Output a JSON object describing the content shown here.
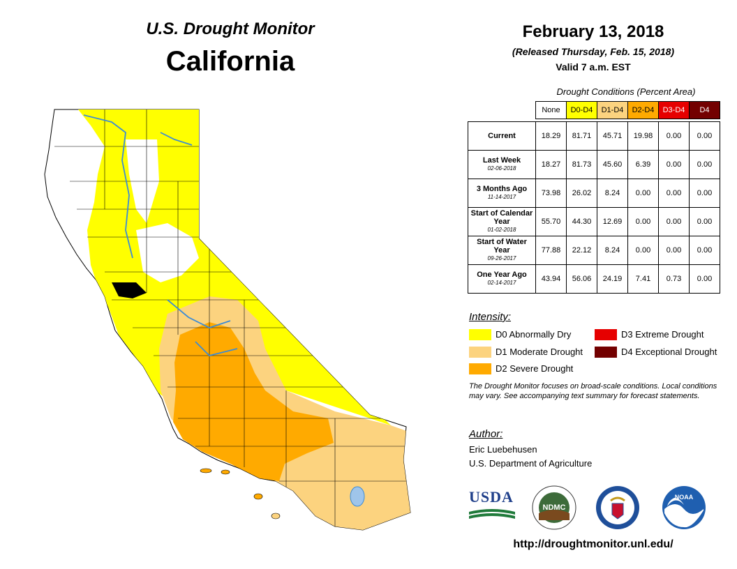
{
  "header": {
    "monitor_title": "U.S. Drought Monitor",
    "state": "California",
    "date": "February 13, 2018",
    "released": "(Released Thursday, Feb. 15, 2018)",
    "valid": "Valid 7 a.m. EST"
  },
  "table": {
    "caption": "Drought Conditions (Percent Area)",
    "columns": [
      {
        "label": "None",
        "color": "#ffffff",
        "text_color": "#000000"
      },
      {
        "label": "D0-D4",
        "color": "#ffff00",
        "text_color": "#000000"
      },
      {
        "label": "D1-D4",
        "color": "#fcd37f",
        "text_color": "#000000"
      },
      {
        "label": "D2-D4",
        "color": "#ffaa00",
        "text_color": "#000000"
      },
      {
        "label": "D3-D4",
        "color": "#e60000",
        "text_color": "#ffffff"
      },
      {
        "label": "D4",
        "color": "#730000",
        "text_color": "#ffffff"
      }
    ],
    "rows": [
      {
        "label": "Current",
        "sub": "",
        "values": [
          "18.29",
          "81.71",
          "45.71",
          "19.98",
          "0.00",
          "0.00"
        ]
      },
      {
        "label": "Last Week",
        "sub": "02-06-2018",
        "values": [
          "18.27",
          "81.73",
          "45.60",
          "6.39",
          "0.00",
          "0.00"
        ]
      },
      {
        "label": "3 Months Ago",
        "sub": "11-14-2017",
        "values": [
          "73.98",
          "26.02",
          "8.24",
          "0.00",
          "0.00",
          "0.00"
        ]
      },
      {
        "label": "Start of Calendar Year",
        "sub": "01-02-2018",
        "values": [
          "55.70",
          "44.30",
          "12.69",
          "0.00",
          "0.00",
          "0.00"
        ]
      },
      {
        "label": "Start of Water Year",
        "sub": "09-26-2017",
        "values": [
          "77.88",
          "22.12",
          "8.24",
          "0.00",
          "0.00",
          "0.00"
        ]
      },
      {
        "label": "One Year Ago",
        "sub": "02-14-2017",
        "values": [
          "43.94",
          "56.06",
          "24.19",
          "7.41",
          "0.73",
          "0.00"
        ]
      }
    ]
  },
  "legend": {
    "title": "Intensity:",
    "items": [
      {
        "label": "D0 Abnormally Dry",
        "color": "#ffff00"
      },
      {
        "label": "D1 Moderate Drought",
        "color": "#fcd37f"
      },
      {
        "label": "D2 Severe Drought",
        "color": "#ffaa00"
      },
      {
        "label": "D3 Extreme Drought",
        "color": "#e60000"
      },
      {
        "label": "D4 Exceptional Drought",
        "color": "#730000"
      }
    ]
  },
  "note": "The Drought Monitor focuses on broad-scale conditions. Local conditions may vary. See accompanying text summary for forecast statements.",
  "author": {
    "label": "Author:",
    "name": "Eric Luebehusen",
    "org": "U.S. Department of Agriculture"
  },
  "logos": {
    "usda": "USDA",
    "ndmc": "NDMC",
    "noaa": "NOAA"
  },
  "url": "http://droughtmonitor.unl.edu/"
}
